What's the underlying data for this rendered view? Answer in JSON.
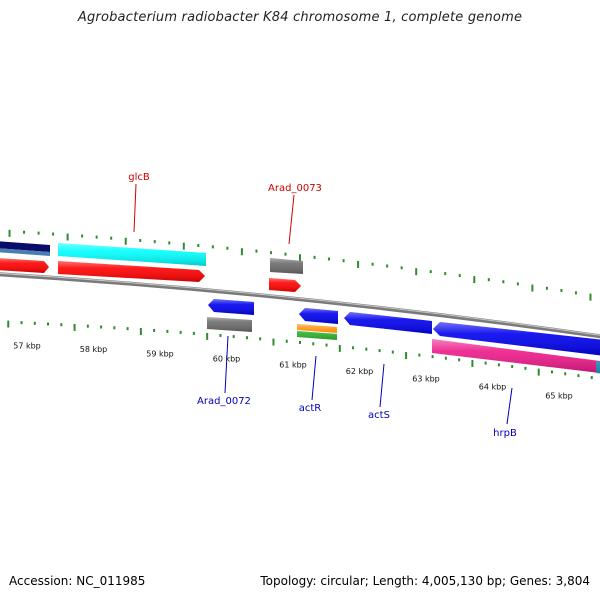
{
  "title": "Agrobacterium radiobacter K84 chromosome 1, complete genome",
  "footer": {
    "accession": "Accession: NC_011985",
    "summary": "Topology: circular; Length: 4,005,130 bp; Genes: 3,804"
  },
  "scale_labels": [
    "57 kbp",
    "58 kbp",
    "59 kbp",
    "60 kbp",
    "61 kbp",
    "62 kbp",
    "63 kbp",
    "64 kbp",
    "65 kbp"
  ],
  "gene_labels": {
    "glcB": "glcB",
    "arad_0073": "Arad_0073",
    "arad_0072": "Arad_0072",
    "actR": "actR",
    "actS": "actS",
    "hrpB": "hrpB"
  },
  "colors": {
    "forward_label": "#cc0000",
    "reverse_label": "#0000bb",
    "backbone": "#888888",
    "tick_green": "#2e8b2e",
    "cds_red": "#ff0000",
    "cds_blue": "#0000ee",
    "cds_cyan": "#00ffff",
    "cds_gray": "#6a6a6a",
    "cds_navy": "#0b0b6e",
    "cds_magenta": "#ee1a8a",
    "cds_orange": "#ff8c00",
    "cds_green": "#33bb33"
  }
}
